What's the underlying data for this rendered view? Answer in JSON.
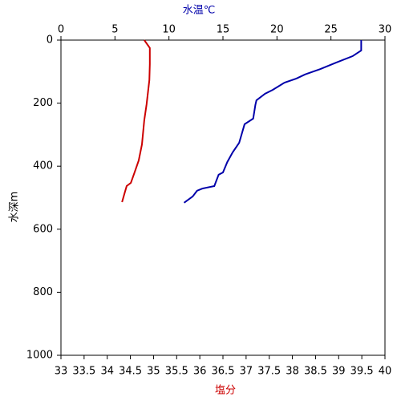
{
  "chart_data": {
    "type": "line",
    "xlabel": "塩分",
    "x2label": "水温℃",
    "ylabel": "水深m",
    "xlim": [
      33,
      40
    ],
    "xticks": [
      33,
      33.5,
      34,
      34.5,
      35,
      35.5,
      36,
      36.5,
      37,
      37.5,
      38,
      38.5,
      39,
      39.5,
      40
    ],
    "x2lim": [
      0,
      30
    ],
    "x2ticks": [
      0,
      5,
      10,
      15,
      20,
      25,
      30
    ],
    "ylim": [
      0,
      1000
    ],
    "yticks": [
      0,
      200,
      400,
      600,
      800,
      1000
    ],
    "y_inverted": true,
    "xlabel_color": "#cc0000",
    "x2label_color": "#0000aa",
    "series": [
      {
        "color": "#0000aa",
        "axis": "x2",
        "x": [
          27.8,
          27.8,
          27.0,
          25.5,
          24.0,
          22.6,
          21.8,
          20.7,
          19.6,
          18.9,
          18.1,
          18.0,
          17.8,
          17.0,
          16.5,
          15.9,
          15.4,
          15.0,
          14.6,
          14.2,
          13.1,
          12.6,
          12.2,
          11.4
        ],
        "y": [
          0,
          33,
          51,
          71,
          92,
          109,
          122,
          135,
          158,
          170,
          191,
          206,
          249,
          267,
          326,
          356,
          387,
          420,
          427,
          463,
          471,
          478,
          496,
          516
        ]
      },
      {
        "color": "#cc0000",
        "axis": "x",
        "x": [
          34.8,
          34.92,
          34.92,
          34.91,
          34.85,
          34.8,
          34.75,
          34.68,
          34.59,
          34.51,
          34.42,
          34.38,
          34.32
        ],
        "y": [
          0,
          25,
          76,
          127,
          204,
          254,
          331,
          382,
          420,
          453,
          463,
          483,
          514
        ]
      }
    ]
  }
}
